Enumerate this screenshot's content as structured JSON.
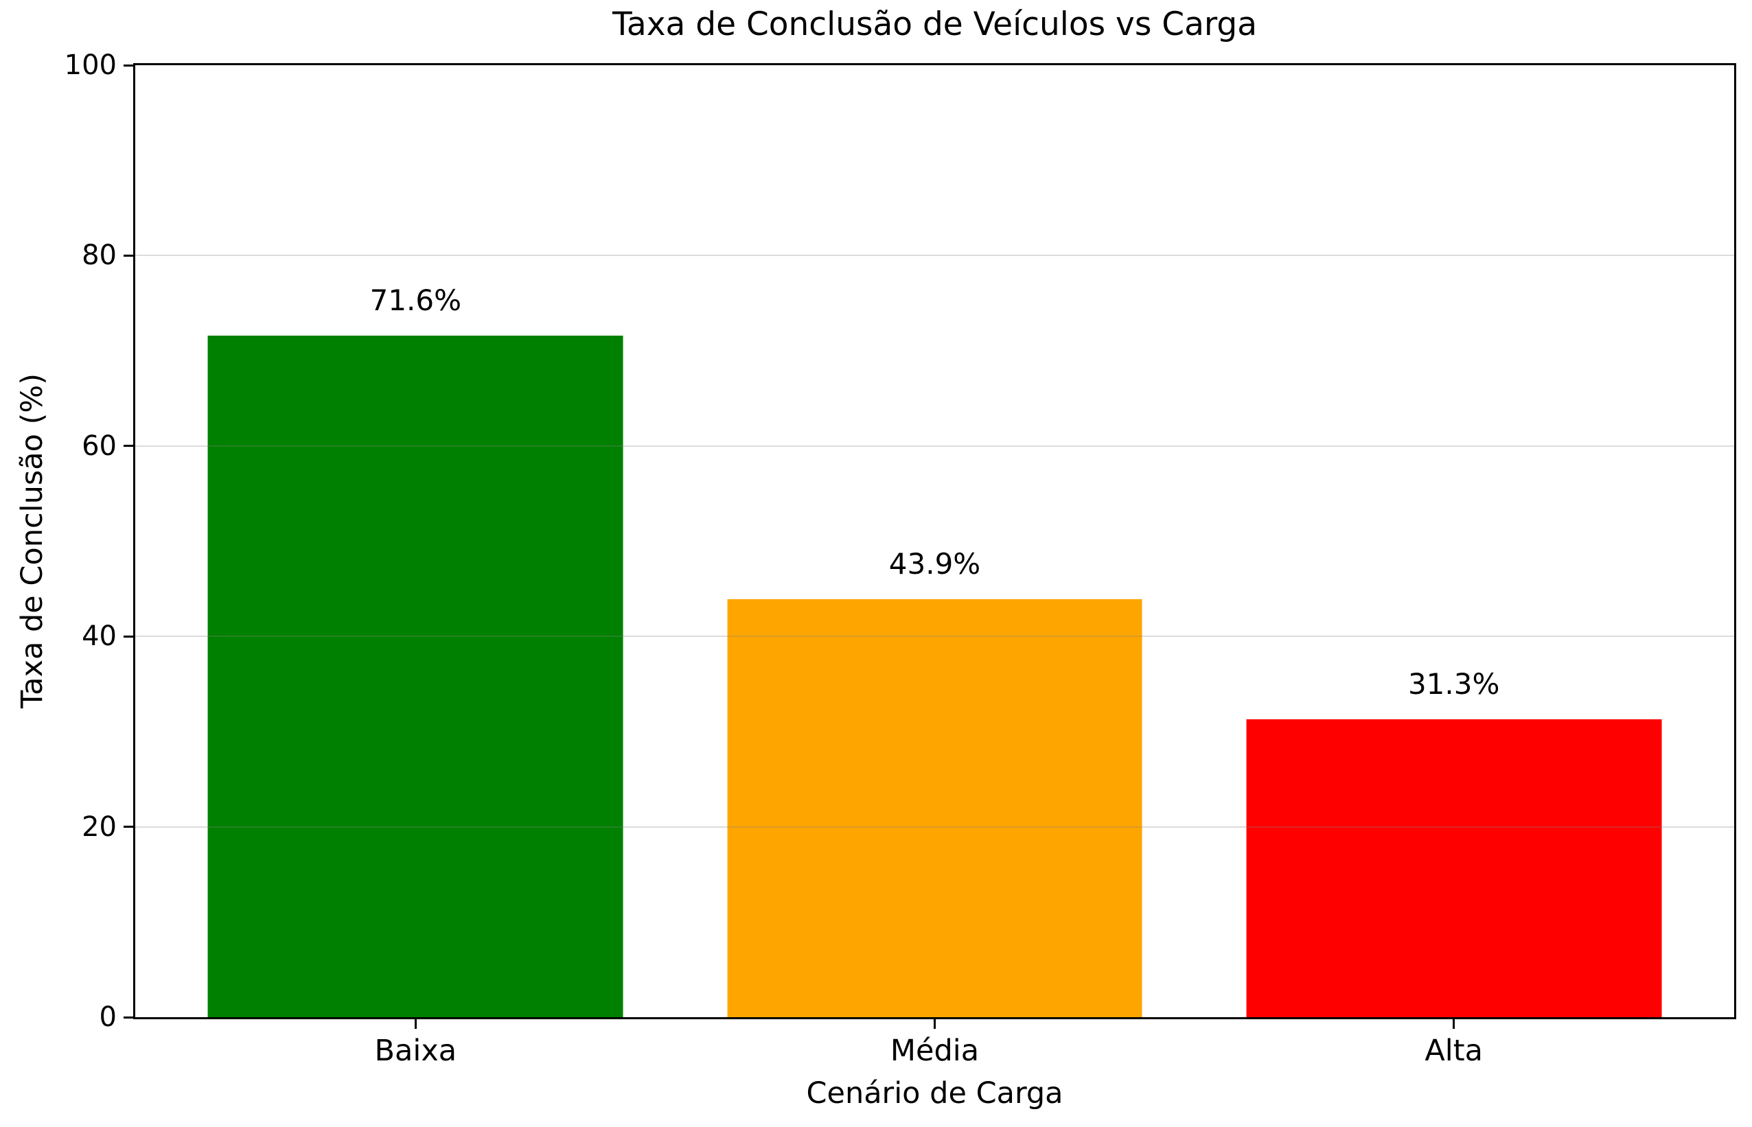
{
  "chart_data": {
    "type": "bar",
    "title": "Taxa de Conclusão de Veículos vs Carga",
    "xlabel": "Cenário de Carga",
    "ylabel": "Taxa de Conclusão (%)",
    "categories": [
      "Baixa",
      "Média",
      "Alta"
    ],
    "values": [
      71.6,
      43.9,
      31.3
    ],
    "value_labels": [
      "71.6%",
      "43.9%",
      "31.3%"
    ],
    "bar_colors": [
      "#008000",
      "#FFA500",
      "#FF0000"
    ],
    "ylim": [
      0,
      100
    ],
    "yticks": [
      0,
      20,
      40,
      60,
      80,
      100
    ],
    "ytick_labels": [
      "0",
      "20",
      "40",
      "60",
      "80",
      "100"
    ],
    "grid": "horizontal",
    "gridline_color": "rgba(128,128,128,0.28)",
    "axis_color": "#000000",
    "background_color": "#ffffff"
  }
}
